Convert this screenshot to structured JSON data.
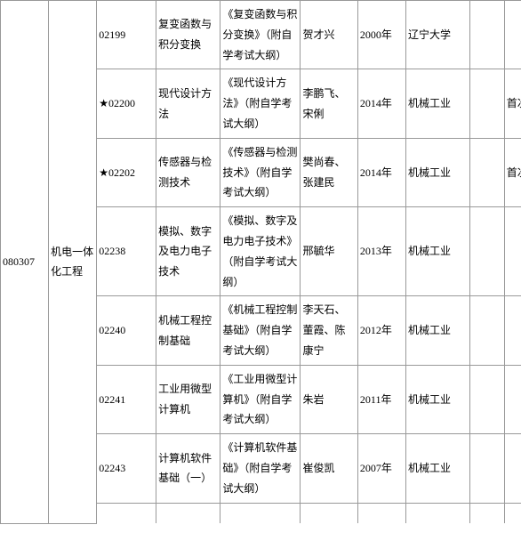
{
  "colors": {
    "border": "#999999",
    "text": "#000000",
    "background": "#ffffff"
  },
  "fontsize": 12,
  "major_code": "080307",
  "major_name": "机电一体化工程",
  "rows": [
    {
      "code": "02199",
      "course": "复变函数与积分变换",
      "textbook": "《复变函数与积分变换》（附自学考试大纲）",
      "author": "贺才兴",
      "year": "2000年",
      "publisher": "辽宁大学",
      "note": ""
    },
    {
      "code": "★02200",
      "course": "现代设计方法",
      "textbook": "《现代设计方法》（附自学考试大纲）",
      "author": "李鹏飞、宋俐",
      "year": "2014年",
      "publisher": "机械工业",
      "note": "首次启用"
    },
    {
      "code": "★02202",
      "course": "传感器与检测技术",
      "textbook": "《传感器与检测技术》（附自学考试大纲）",
      "author": "樊尚春、张建民",
      "year": "2014年",
      "publisher": "机械工业",
      "note": "首次启用"
    },
    {
      "code": "02238",
      "course": "模拟、数字及电力电子技术",
      "textbook": "《模拟、数字及电力电子技术》（附自学考试大纲）",
      "author": "邢毓华",
      "year": "2013年",
      "publisher": "机械工业",
      "note": ""
    },
    {
      "code": "02240",
      "course": "机械工程控制基础",
      "textbook": "《机械工程控制基础》（附自学考试大纲）",
      "author": "李天石、董霞、陈康宁",
      "year": "2012年",
      "publisher": "机械工业",
      "note": ""
    },
    {
      "code": "02241",
      "course": "工业用微型计算机",
      "textbook": "《工业用微型计算机》（附自学考试大纲）",
      "author": "朱岩",
      "year": "2011年",
      "publisher": "机械工业",
      "note": ""
    },
    {
      "code": "02243",
      "course": "计算机软件基础（一）",
      "textbook": "《计算机软件基础》（附自学考试大纲）",
      "author": "崔俊凯",
      "year": "2007年",
      "publisher": "机械工业",
      "note": ""
    }
  ]
}
